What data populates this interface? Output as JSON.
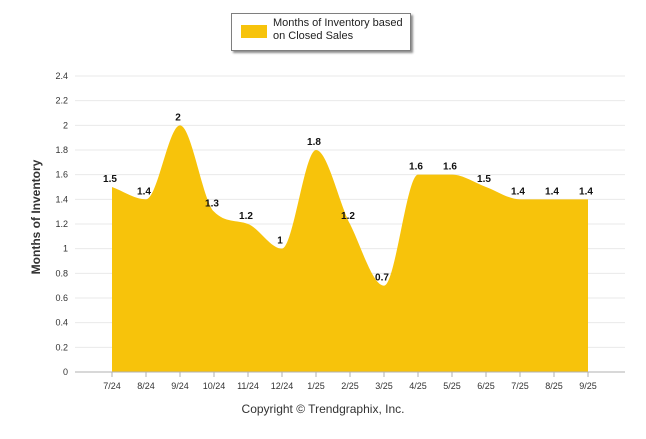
{
  "chart_data": {
    "type": "area",
    "categories": [
      "7/24",
      "8/24",
      "9/24",
      "10/24",
      "11/24",
      "12/24",
      "1/25",
      "2/25",
      "3/25",
      "4/25",
      "5/25",
      "6/25",
      "7/25",
      "8/25",
      "9/25"
    ],
    "series": [
      {
        "name": "Months of Inventory based on Closed Sales",
        "values": [
          1.5,
          1.4,
          2,
          1.3,
          1.2,
          1,
          1.8,
          1.2,
          0.7,
          1.6,
          1.6,
          1.5,
          1.4,
          1.4,
          1.4
        ]
      }
    ],
    "data_labels": [
      "1.5",
      "1.4",
      "2",
      "1.3",
      "1.2",
      "1",
      "1.8",
      "1.2",
      "0.7",
      "1.6",
      "1.6",
      "1.5",
      "1.4",
      "1.4",
      "1.4"
    ],
    "ylabel": "Months of Inventory",
    "ylim": [
      0,
      2.4
    ],
    "y_ticks": [
      "0",
      "0.2",
      "0.4",
      "0.6",
      "0.8",
      "1",
      "1.2",
      "1.4",
      "1.6",
      "1.8",
      "2",
      "2.2",
      "2.4"
    ],
    "grid": true,
    "legend": "top-center",
    "colors": {
      "area": "#f7c30b",
      "grid": "#e9e9e9",
      "axis": "#b0b0b0"
    }
  },
  "legend": {
    "label_line1": "Months of Inventory based",
    "label_line2": "on Closed Sales"
  },
  "footer": {
    "copyright": "Copyright © Trendgraphix, Inc."
  }
}
